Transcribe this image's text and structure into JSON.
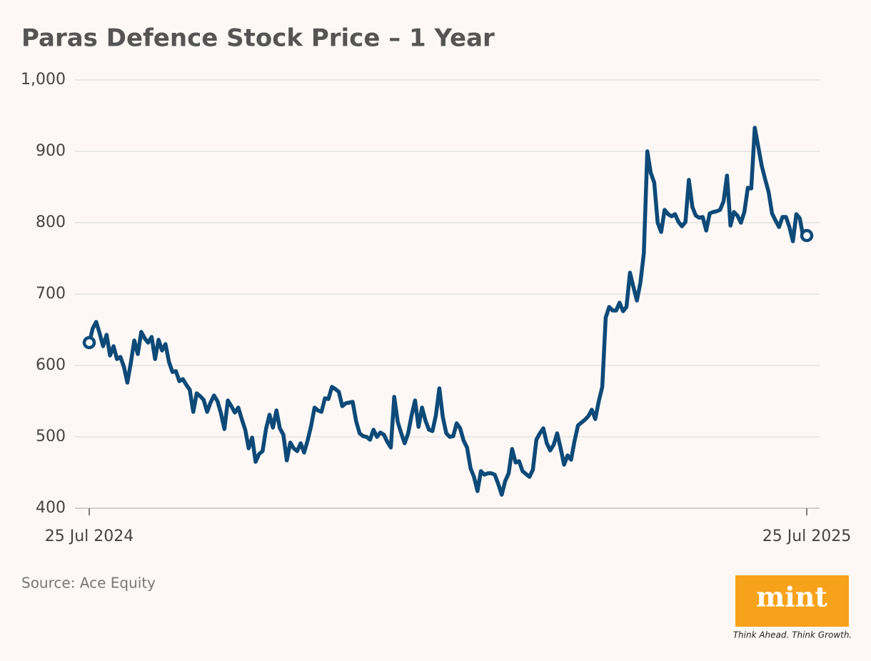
{
  "chart_data": {
    "type": "line",
    "title": "Paras Defence Stock Price – 1 Year",
    "source": "Source: Ace Equity",
    "categories": [
      "25 Jul 2024",
      null,
      null,
      null,
      null,
      null,
      null,
      null,
      null,
      null,
      null,
      null,
      null,
      null,
      null,
      null,
      null,
      null,
      null,
      null,
      null,
      null,
      null,
      null,
      null,
      null,
      null,
      null,
      null,
      null,
      null,
      null,
      null,
      null,
      null,
      null,
      null,
      null,
      null,
      null,
      null,
      null,
      null,
      null,
      null,
      null,
      null,
      null,
      null,
      null,
      null,
      null,
      null,
      null,
      null,
      null,
      null,
      null,
      null,
      null,
      null,
      null,
      null,
      null,
      null,
      null,
      null,
      null,
      null,
      null,
      null,
      null,
      null,
      null,
      null,
      null,
      null,
      null,
      null,
      null,
      null,
      null,
      null,
      null,
      null,
      null,
      null,
      null,
      null,
      null,
      null,
      null,
      null,
      null,
      null,
      null,
      null,
      null,
      null,
      null,
      null,
      null,
      null,
      null,
      null,
      null,
      null,
      null,
      null,
      null,
      null,
      null,
      null,
      null,
      null,
      null,
      null,
      null,
      null,
      null,
      null,
      null,
      null,
      null,
      null,
      null,
      null,
      null,
      null,
      null,
      null,
      null,
      null,
      null,
      null,
      null,
      null,
      null,
      null,
      null,
      null,
      null,
      null,
      null,
      null,
      null,
      null,
      null,
      null,
      null,
      null,
      null,
      null,
      null,
      null,
      null,
      null,
      null,
      null,
      null,
      null,
      null,
      null,
      null,
      null,
      null,
      null,
      null,
      null,
      null,
      null,
      null,
      null,
      null,
      null,
      null,
      null,
      null,
      null,
      null,
      null,
      null,
      null,
      null,
      null,
      null,
      null,
      null,
      null,
      null,
      null,
      null,
      null,
      null,
      null,
      null,
      null,
      null,
      null,
      null,
      null,
      null,
      null,
      null,
      null,
      null,
      null,
      "25 Jul 2025"
    ],
    "series": [
      {
        "color": "#0d4a78",
        "values": [
          632,
          652,
          661,
          645,
          627,
          643,
          614,
          627,
          609,
          612,
          598,
          576,
          604,
          635,
          616,
          647,
          638,
          632,
          640,
          609,
          636,
          621,
          630,
          605,
          591,
          592,
          578,
          581,
          573,
          566,
          535,
          561,
          557,
          552,
          535,
          548,
          558,
          550,
          533,
          511,
          551,
          543,
          534,
          541,
          525,
          510,
          484,
          499,
          465,
          476,
          480,
          511,
          531,
          513,
          537,
          512,
          503,
          467,
          492,
          484,
          480,
          491,
          478,
          495,
          515,
          541,
          537,
          535,
          554,
          553,
          570,
          567,
          563,
          543,
          547,
          548,
          549,
          522,
          505,
          501,
          500,
          496,
          510,
          500,
          506,
          503,
          493,
          485,
          556,
          521,
          505,
          491,
          505,
          530,
          551,
          514,
          541,
          523,
          510,
          508,
          530,
          568,
          528,
          505,
          500,
          501,
          519,
          512,
          495,
          485,
          456,
          444,
          424,
          452,
          447,
          449,
          449,
          447,
          434,
          419,
          438,
          449,
          483,
          464,
          466,
          452,
          448,
          444,
          454,
          496,
          505,
          512,
          491,
          481,
          489,
          505,
          484,
          461,
          474,
          468,
          494,
          516,
          520,
          524,
          529,
          538,
          525,
          550,
          570,
          667,
          682,
          677,
          677,
          688,
          676,
          682,
          730,
          710,
          691,
          716,
          757,
          900,
          870,
          856,
          800,
          787,
          818,
          812,
          809,
          812,
          801,
          795,
          801,
          860,
          822,
          810,
          807,
          808,
          789,
          813,
          815,
          816,
          818,
          830,
          866,
          796,
          815,
          810,
          800,
          815,
          849,
          848,
          933,
          907,
          880,
          861,
          843,
          813,
          803,
          794,
          808,
          808,
          794,
          774,
          812,
          806,
          780,
          782
        ]
      }
    ],
    "ylim": [
      400,
      1000
    ],
    "yticks": [
      400,
      500,
      600,
      700,
      800,
      900,
      {
        "value": 1000,
        "label": "1,000"
      }
    ],
    "grid": true
  },
  "branding": {
    "logo": "mint",
    "tagline": "Think Ahead. Think Growth."
  }
}
